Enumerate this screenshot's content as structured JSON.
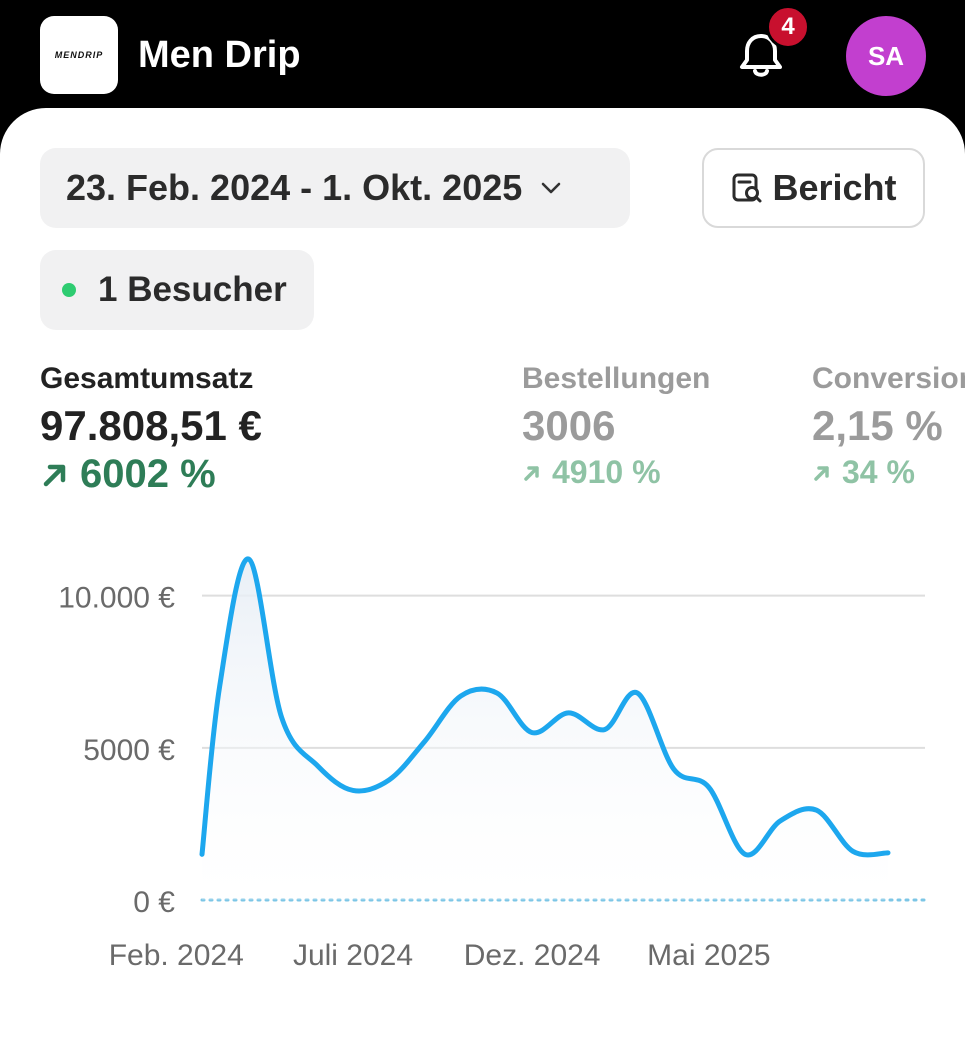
{
  "header": {
    "logo_text": "MENDRIP",
    "app_title": "Men Drip",
    "notification_count": "4",
    "avatar_initials": "SA"
  },
  "filters": {
    "date_range": "23. Feb. 2024 - 1. Okt. 2025",
    "report_label": "Bericht",
    "visitors_label": "1 Besucher"
  },
  "metrics": [
    {
      "label": "Gesamtumsatz",
      "value": "97.808,51 €",
      "change": "6002 %"
    },
    {
      "label": "Bestellungen",
      "value": "3006",
      "change": "4910 %"
    },
    {
      "label": "Conversion",
      "value": "2,15 %",
      "change": "34 %"
    }
  ],
  "colors": {
    "accent_line": "#1da7ee",
    "positive": "#2e7d57",
    "avatar": "#c23fcf",
    "badge": "#c8102e"
  },
  "chart_data": {
    "type": "area",
    "y_tick_labels": [
      "0 €",
      "5000 €",
      "10.000 €"
    ],
    "y_ticks": [
      0,
      5000,
      10000
    ],
    "x_tick_labels": [
      "Feb. 2024",
      "Juli 2024",
      "Dez. 2024",
      "Mai 2025"
    ],
    "x_ticks": [
      "2024-02-01",
      "2024-07-01",
      "2024-12-01",
      "2025-05-01"
    ],
    "ylim": [
      0,
      11500
    ],
    "xlim": [
      "2024-02-23",
      "2025-10-01"
    ],
    "series": [
      {
        "values": [
          [
            "2024-02-23",
            1500
          ],
          [
            "2024-03-09",
            7000
          ],
          [
            "2024-04-03",
            11200
          ],
          [
            "2024-05-01",
            6000
          ],
          [
            "2024-06-01",
            4400
          ],
          [
            "2024-07-01",
            3600
          ],
          [
            "2024-08-01",
            3950
          ],
          [
            "2024-08-31",
            5200
          ],
          [
            "2024-10-01",
            6700
          ],
          [
            "2024-11-01",
            6800
          ],
          [
            "2024-12-01",
            5500
          ],
          [
            "2025-01-01",
            6150
          ],
          [
            "2025-02-01",
            5600
          ],
          [
            "2025-03-01",
            6800
          ],
          [
            "2025-04-01",
            4300
          ],
          [
            "2025-05-01",
            3700
          ],
          [
            "2025-06-01",
            1500
          ],
          [
            "2025-07-01",
            2600
          ],
          [
            "2025-08-01",
            2950
          ],
          [
            "2025-09-01",
            1600
          ],
          [
            "2025-10-01",
            1550
          ]
        ]
      },
      {
        "style": "dotted",
        "values": [
          [
            "2024-02-23",
            0
          ],
          [
            "2025-10-01",
            0
          ]
        ]
      }
    ]
  }
}
